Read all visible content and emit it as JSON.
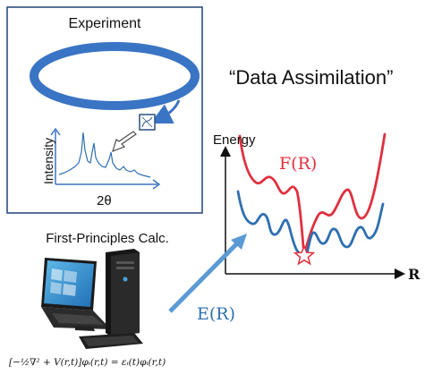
{
  "experiment": {
    "title": "Experiment",
    "y_axis_label": "Intensity",
    "x_axis_label": "2θ"
  },
  "assimilation": {
    "title": "“Data Assimilation”",
    "y_axis_label": "Energy",
    "x_axis_label": "R",
    "free_energy_label": "F(R)",
    "energy_label": "E(R)"
  },
  "calculation": {
    "title": "First-Principles Calc.",
    "equation": "[−½∇² + V(r,t)]φᵢ(r,t) = εᵢ(t)φᵢ(r,t)"
  },
  "colors": {
    "red_curve": "#e0303f",
    "blue_curve": "#2e6fb0",
    "ring": "#3a74c4",
    "arrow": "#5b9bd5"
  }
}
